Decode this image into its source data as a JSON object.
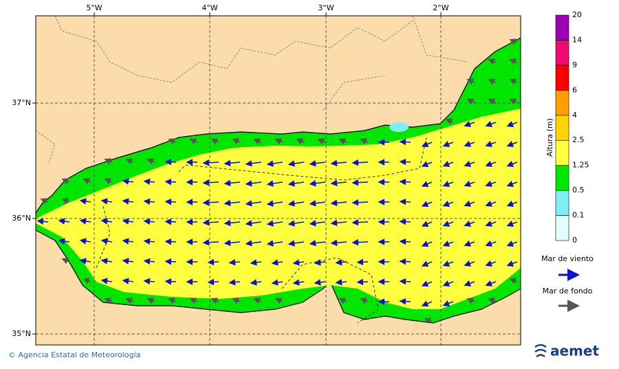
{
  "map": {
    "lon_labels": [
      "5°W",
      "4°W",
      "3°W",
      "2°W"
    ],
    "lat_labels": [
      "37°N",
      "36°N",
      "35°N"
    ]
  },
  "colorbar": {
    "title": "Altura (m)",
    "levels": [
      0,
      0.1,
      0.5,
      1.25,
      2.5,
      4,
      6,
      9,
      14,
      20
    ],
    "colors": [
      "#e0ffff",
      "#80eef6",
      "#00e600",
      "#ffff40",
      "#ffd200",
      "#ffa000",
      "#ff0000",
      "#ee0a6e",
      "#a000b4"
    ]
  },
  "legend": {
    "wind_sea": "Mar de viento",
    "swell": "Mar de fondo"
  },
  "footer": {
    "credit": "© Agencia Estatal de Meteorología",
    "logo": "aemet"
  }
}
